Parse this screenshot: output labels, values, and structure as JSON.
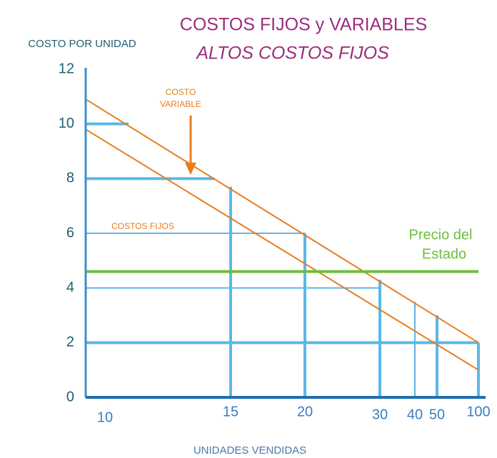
{
  "chart_data": {
    "type": "bar",
    "title": "COSTOS FIJOS y VARIABLES",
    "subtitle": "ALTOS COSTOS FIJOS",
    "y_label": "COSTO POR UNIDAD",
    "x_label": "UNIDADES VENDIDAS",
    "categories": [
      "10",
      "15",
      "20",
      "30",
      "40",
      "50",
      "100"
    ],
    "ylim": [
      0,
      12
    ],
    "yticks": [
      0,
      2,
      4,
      6,
      8,
      10,
      12
    ],
    "series": [
      {
        "name": "COSTOS FIJOS",
        "color": "#5bb8e8",
        "values": [
          null,
          7.7,
          6,
          4.3,
          3.5,
          3,
          2
        ]
      }
    ],
    "fixed_levels": [
      10,
      8,
      6,
      4,
      2
    ],
    "lines": [
      {
        "color": "#e87d1e",
        "values": [
          10.9,
          2
        ]
      },
      {
        "color": "#e87d1e",
        "values": [
          9.8,
          1
        ]
      }
    ],
    "price_line": {
      "name": "Precio del Estado",
      "label_lines": [
        "Precio del",
        "Estado"
      ],
      "color": "#6dbf3a",
      "value": 4.6
    },
    "annotations": {
      "variable_lines": [
        "COSTO",
        "VARIABLE"
      ],
      "fixed": "COSTOS FIJOS"
    }
  }
}
